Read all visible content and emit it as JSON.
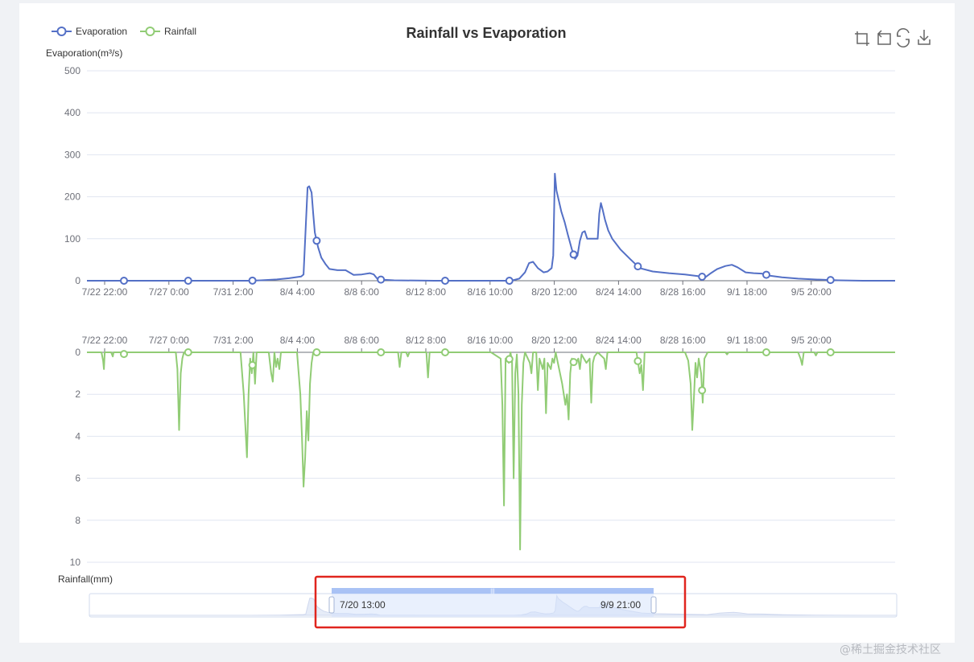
{
  "colors": {
    "evaporation": "#5470c6",
    "rainfall": "#91cc75",
    "grid": "#e0e6f1",
    "highlight": "#e0251e",
    "dataZoomFill": "#d4e1fb",
    "dataZoomHandle": "#a9c2f5"
  },
  "toolbox": {
    "icons": [
      "zoom-icon",
      "zoom-reset-icon",
      "restore-icon",
      "save-image-icon"
    ]
  },
  "dataZoom": {
    "start_label": "7/20 13:00",
    "end_label": "9/9 21:00",
    "highlighted": true
  },
  "watermark": "@稀土掘金技术社区",
  "chart_data": [
    {
      "type": "line",
      "title": "Rainfall vs Evaporation",
      "legend": [
        "Evaporation",
        "Rainfall"
      ],
      "legend_position": "top-left",
      "ylabel": "Evaporation(m³/s)",
      "ylim": [
        0,
        500
      ],
      "yticks": [
        0,
        100,
        200,
        300,
        400,
        500
      ],
      "x_tick_labels": [
        "7/22 22:00",
        "7/27 0:00",
        "7/31 2:00",
        "8/4 4:00",
        "8/8 6:00",
        "8/12 8:00",
        "8/16 10:00",
        "8/20 12:00",
        "8/24 14:00",
        "8/28 16:00",
        "9/1 18:00",
        "9/5 20:00"
      ],
      "grid": true,
      "series": [
        {
          "name": "Evaporation",
          "points": [
            [
              0,
              0
            ],
            [
              40,
              0
            ],
            [
              80,
              0
            ],
            [
              120,
              0
            ],
            [
              160,
              0
            ],
            [
              200,
              0
            ],
            [
              215,
              1
            ],
            [
              235,
              3
            ],
            [
              250,
              6
            ],
            [
              265,
              10
            ],
            [
              268,
              15
            ],
            [
              271,
              140
            ],
            [
              273,
              222
            ],
            [
              275,
              225
            ],
            [
              278,
              210
            ],
            [
              280,
              160
            ],
            [
              282,
              115
            ],
            [
              286,
              80
            ],
            [
              290,
              55
            ],
            [
              295,
              40
            ],
            [
              300,
              28
            ],
            [
              310,
              25
            ],
            [
              320,
              25
            ],
            [
              330,
              14
            ],
            [
              340,
              15
            ],
            [
              350,
              18
            ],
            [
              355,
              15
            ],
            [
              360,
              3
            ],
            [
              380,
              1
            ],
            [
              430,
              0
            ],
            [
              480,
              0
            ],
            [
              525,
              0
            ],
            [
              535,
              5
            ],
            [
              542,
              20
            ],
            [
              547,
              42
            ],
            [
              552,
              45
            ],
            [
              558,
              30
            ],
            [
              565,
              20
            ],
            [
              570,
              22
            ],
            [
              575,
              30
            ],
            [
              577,
              60
            ],
            [
              579,
              255
            ],
            [
              581,
              215
            ],
            [
              584,
              190
            ],
            [
              587,
              165
            ],
            [
              591,
              140
            ],
            [
              595,
              110
            ],
            [
              600,
              75
            ],
            [
              604,
              52
            ],
            [
              607,
              60
            ],
            [
              610,
              95
            ],
            [
              613,
              115
            ],
            [
              616,
              118
            ],
            [
              619,
              100
            ],
            [
              623,
              100
            ],
            [
              628,
              100
            ],
            [
              632,
              100
            ],
            [
              634,
              160
            ],
            [
              636,
              185
            ],
            [
              638,
              170
            ],
            [
              641,
              145
            ],
            [
              645,
              120
            ],
            [
              650,
              100
            ],
            [
              660,
              75
            ],
            [
              672,
              52
            ],
            [
              684,
              30
            ],
            [
              700,
              22
            ],
            [
              720,
              18
            ],
            [
              740,
              15
            ],
            [
              760,
              10
            ],
            [
              765,
              8
            ],
            [
              772,
              18
            ],
            [
              780,
              28
            ],
            [
              790,
              35
            ],
            [
              798,
              38
            ],
            [
              805,
              32
            ],
            [
              815,
              20
            ],
            [
              825,
              18
            ],
            [
              835,
              17
            ],
            [
              845,
              12
            ],
            [
              860,
              8
            ],
            [
              880,
              5
            ],
            [
              900,
              3
            ],
            [
              930,
              1
            ],
            [
              960,
              0
            ],
            [
              1000,
              0
            ]
          ]
        }
      ]
    },
    {
      "type": "line",
      "ylabel": "Rainfall(mm)",
      "ylim": [
        0,
        10
      ],
      "yticks": [
        0,
        2,
        4,
        6,
        8,
        10
      ],
      "y_inverse": true,
      "x_tick_labels": [
        "7/22 22:00",
        "7/27 0:00",
        "7/31 2:00",
        "8/4 4:00",
        "8/8 6:00",
        "8/12 8:00",
        "8/16 10:00",
        "8/20 12:00",
        "8/24 14:00",
        "8/28 16:00",
        "9/1 18:00",
        "9/5 20:00"
      ],
      "grid": true,
      "series": [
        {
          "name": "Rainfall",
          "points": [
            [
              0,
              0
            ],
            [
              18,
              0
            ],
            [
              20,
              0.4
            ],
            [
              21,
              0.8
            ],
            [
              22,
              0
            ],
            [
              30,
              0
            ],
            [
              32,
              0.2
            ],
            [
              33,
              0
            ],
            [
              45,
              0
            ],
            [
              47,
              0.2
            ],
            [
              48,
              0
            ],
            [
              110,
              0
            ],
            [
              112,
              0.8
            ],
            [
              114,
              3.7
            ],
            [
              116,
              1
            ],
            [
              118,
              0.3
            ],
            [
              120,
              0
            ],
            [
              190,
              0
            ],
            [
              194,
              2
            ],
            [
              198,
              5
            ],
            [
              200,
              2
            ],
            [
              202,
              0.3
            ],
            [
              204,
              1
            ],
            [
              206,
              0
            ],
            [
              208,
              1.5
            ],
            [
              210,
              0
            ],
            [
              225,
              0
            ],
            [
              228,
              1
            ],
            [
              230,
              1.4
            ],
            [
              232,
              0
            ],
            [
              234,
              0.7
            ],
            [
              236,
              0.3
            ],
            [
              238,
              0.8
            ],
            [
              240,
              0
            ],
            [
              260,
              0
            ],
            [
              264,
              2
            ],
            [
              266,
              4
            ],
            [
              268,
              6.4
            ],
            [
              270,
              5
            ],
            [
              272,
              2.8
            ],
            [
              274,
              4.2
            ],
            [
              276,
              1.5
            ],
            [
              278,
              0.5
            ],
            [
              280,
              0
            ],
            [
              385,
              0
            ],
            [
              387,
              0.7
            ],
            [
              389,
              0
            ],
            [
              395,
              0
            ],
            [
              397,
              0.2
            ],
            [
              399,
              0
            ],
            [
              420,
              0
            ],
            [
              422,
              1.2
            ],
            [
              424,
              0
            ],
            [
              500,
              0
            ],
            [
              512,
              0.3
            ],
            [
              514,
              2.5
            ],
            [
              516,
              7.3
            ],
            [
              518,
              0.3
            ],
            [
              522,
              0.5
            ],
            [
              524,
              0
            ],
            [
              526,
              0.4
            ],
            [
              528,
              6.0
            ],
            [
              530,
              1
            ],
            [
              532,
              0.1
            ],
            [
              534,
              2
            ],
            [
              536,
              9.4
            ],
            [
              538,
              2.5
            ],
            [
              540,
              0.5
            ],
            [
              542,
              0
            ],
            [
              548,
              0.5
            ],
            [
              550,
              1
            ],
            [
              552,
              0
            ],
            [
              556,
              0
            ],
            [
              558,
              1.8
            ],
            [
              560,
              0.3
            ],
            [
              564,
              0.8
            ],
            [
              566,
              0.3
            ],
            [
              568,
              2.9
            ],
            [
              570,
              0.5
            ],
            [
              574,
              0.8
            ],
            [
              576,
              0.3
            ],
            [
              578,
              0.5
            ],
            [
              580,
              0
            ],
            [
              588,
              1.5
            ],
            [
              592,
              2.5
            ],
            [
              594,
              2.0
            ],
            [
              596,
              3.2
            ],
            [
              598,
              1
            ],
            [
              600,
              0.3
            ],
            [
              604,
              0.6
            ],
            [
              608,
              0.3
            ],
            [
              610,
              0.8
            ],
            [
              612,
              0.1
            ],
            [
              618,
              0.5
            ],
            [
              622,
              0.3
            ],
            [
              624,
              2.4
            ],
            [
              626,
              0.5
            ],
            [
              628,
              0.2
            ],
            [
              632,
              0
            ],
            [
              640,
              0.3
            ],
            [
              642,
              0.8
            ],
            [
              644,
              0
            ],
            [
              680,
              0
            ],
            [
              684,
              1
            ],
            [
              686,
              0.6
            ],
            [
              688,
              1.8
            ],
            [
              690,
              0
            ],
            [
              740,
              0
            ],
            [
              744,
              0.4
            ],
            [
              747,
              1.5
            ],
            [
              749,
              3.7
            ],
            [
              751,
              2.2
            ],
            [
              753,
              0.5
            ],
            [
              755,
              1.2
            ],
            [
              757,
              0.3
            ],
            [
              760,
              1
            ],
            [
              762,
              2.4
            ],
            [
              764,
              0.3
            ],
            [
              768,
              0
            ],
            [
              790,
              0
            ],
            [
              792,
              0.1
            ],
            [
              794,
              0
            ],
            [
              880,
              0
            ],
            [
              883,
              0.3
            ],
            [
              885,
              0.6
            ],
            [
              887,
              0
            ],
            [
              900,
              0
            ],
            [
              902,
              0.15
            ],
            [
              904,
              0
            ],
            [
              960,
              0
            ],
            [
              1000,
              0
            ]
          ]
        }
      ]
    }
  ]
}
